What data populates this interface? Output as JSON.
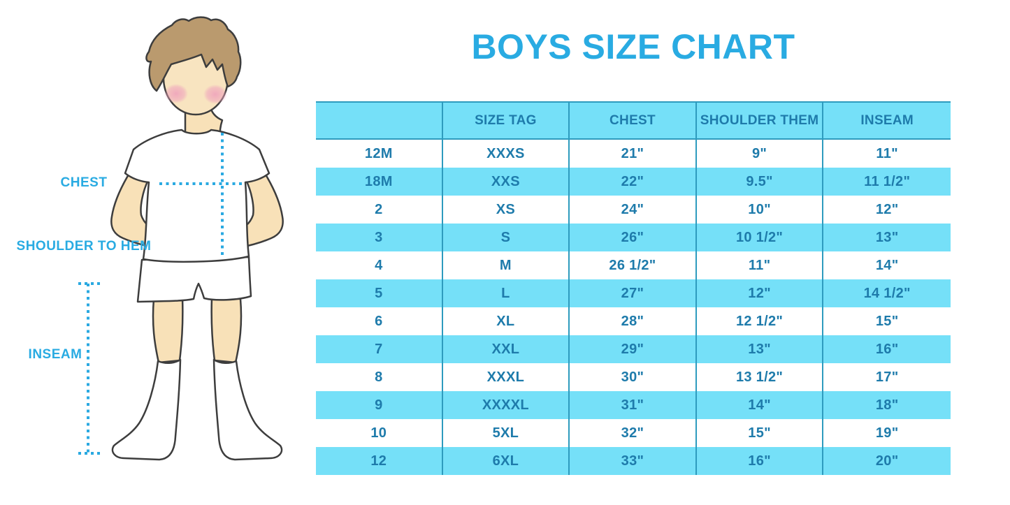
{
  "title": "BOYS SIZE CHART",
  "figure": {
    "description": "cartoon boy in white t-shirt, shorts and knee socks with measurement guides",
    "labels": {
      "chest": "CHEST",
      "shoulder_to_hem": "SHOULDER TO HEM",
      "inseam": "INSEAM"
    }
  },
  "chart_data": {
    "type": "table",
    "title": "BOYS SIZE CHART",
    "columns": [
      "",
      "SIZE TAG",
      "CHEST",
      "SHOULDER THEM",
      "INSEAM"
    ],
    "rows": [
      [
        "12M",
        "XXXS",
        "21\"",
        "9\"",
        "11\""
      ],
      [
        "18M",
        "XXS",
        "22\"",
        "9.5\"",
        "11 1/2\""
      ],
      [
        "2",
        "XS",
        "24\"",
        "10\"",
        "12\""
      ],
      [
        "3",
        "S",
        "26\"",
        "10 1/2\"",
        "13\""
      ],
      [
        "4",
        "M",
        "26 1/2\"",
        "11\"",
        "14\""
      ],
      [
        "5",
        "L",
        "27\"",
        "12\"",
        "14 1/2\""
      ],
      [
        "6",
        "XL",
        "28\"",
        "12 1/2\"",
        "15\""
      ],
      [
        "7",
        "XXL",
        "29\"",
        "13\"",
        "16\""
      ],
      [
        "8",
        "XXXL",
        "30\"",
        "13 1/2\"",
        "17\""
      ],
      [
        "9",
        "XXXXL",
        "31\"",
        "14\"",
        "18\""
      ],
      [
        "10",
        "5XL",
        "32\"",
        "15\"",
        "19\""
      ],
      [
        "12",
        "6XL",
        "33\"",
        "16\"",
        "20\""
      ]
    ],
    "row_stripe_pattern": [
      "white",
      "blue"
    ],
    "grid": "vertical separators and header top/bottom rules only"
  },
  "colors": {
    "accent_blue": "#29ABE2",
    "row_blue": "#75E0F8",
    "table_text": "#1E7BAB",
    "grid_line": "#2E9BBE",
    "dotted_line": "#2AA9E1",
    "skin": "#F8E1B8",
    "hair": "#BA9A6E",
    "outline": "#3D3D3D"
  }
}
